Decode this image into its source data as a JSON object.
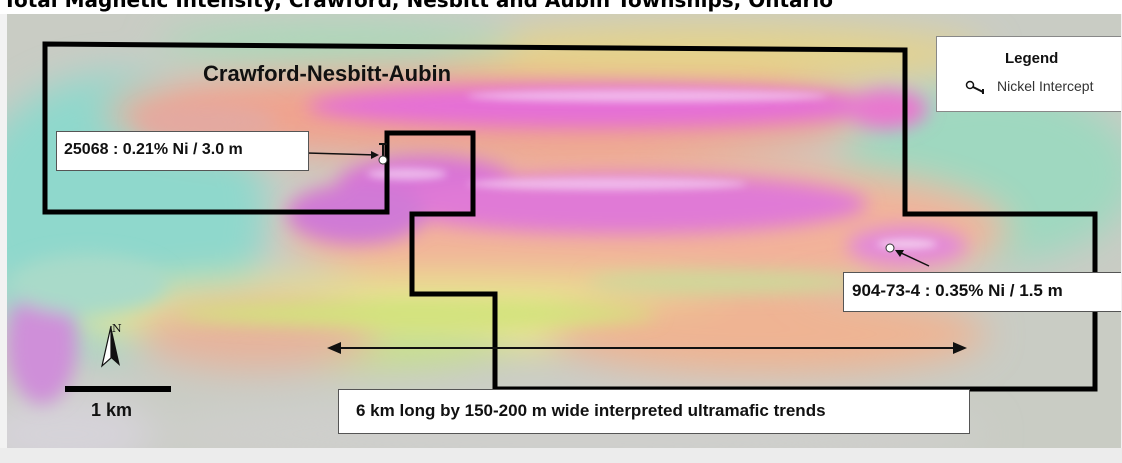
{
  "title": "Total Magnetic Intensity, Crawford, Nesbitt and Aubin Townships, Ontario",
  "claim_name": "Crawford-Nesbitt-Aubin",
  "legend": {
    "title": "Legend",
    "item_label": "Nickel Intercept",
    "item_icon": "nickel-intercept-marker-icon"
  },
  "intercepts": [
    {
      "label": "25068 : 0.21% Ni / 3.0 m"
    },
    {
      "label": "904-73-4 : 0.35% Ni / 1.5 m"
    }
  ],
  "trend_annotation": "6 km long by 150-200 m wide interpreted ultramafic trends",
  "north_arrow_label": "N",
  "scale_bar_label": "1 km",
  "colors": {
    "magnetic_high": "#e56fd6",
    "magnetic_mid": "#f2a58c",
    "magnetic_low": "#7dd6c9",
    "claim_boundary": "#000000"
  }
}
